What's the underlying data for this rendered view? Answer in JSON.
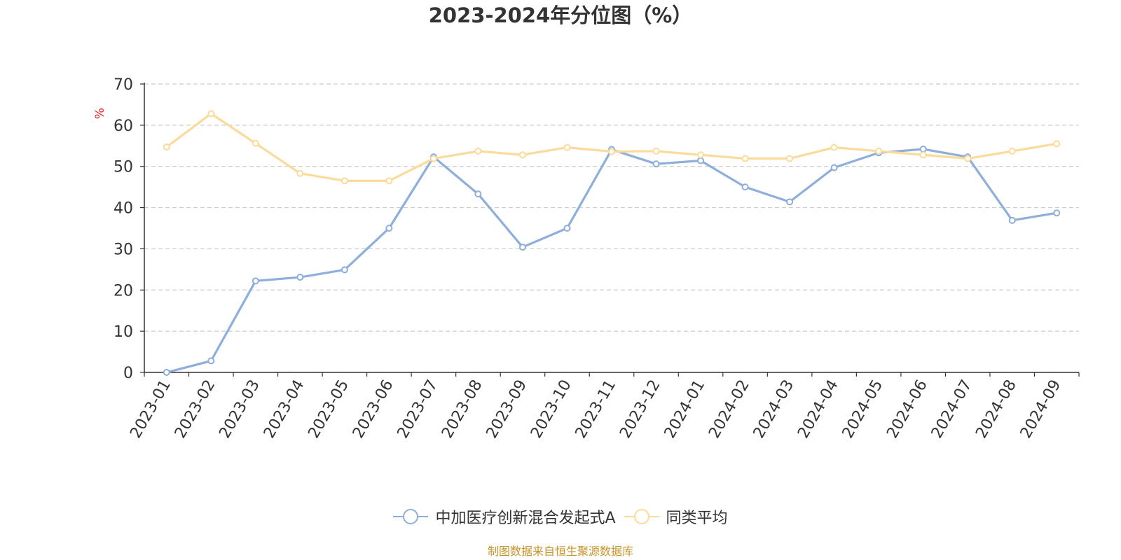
{
  "chart_data": {
    "type": "line",
    "title": "2023-2024年分位图（%）",
    "ylabel": "%",
    "xlabel": "",
    "ylim": [
      0,
      70
    ],
    "yticks": [
      0,
      10,
      20,
      30,
      40,
      50,
      60,
      70
    ],
    "grid": true,
    "legend_position": "bottom",
    "categories": [
      "2023-01",
      "2023-02",
      "2023-03",
      "2023-04",
      "2023-05",
      "2023-06",
      "2023-07",
      "2023-08",
      "2023-09",
      "2023-10",
      "2023-11",
      "2023-12",
      "2024-01",
      "2024-02",
      "2024-03",
      "2024-04",
      "2024-05",
      "2024-06",
      "2024-07",
      "2024-08",
      "2024-09"
    ],
    "series": [
      {
        "name": "中加医疗创新混合发起式A",
        "color": "#8eaedb",
        "values": [
          0,
          2.8,
          22.2,
          23.1,
          24.9,
          35.0,
          52.3,
          43.3,
          30.4,
          35.0,
          54.1,
          50.6,
          51.4,
          45.0,
          41.4,
          49.7,
          53.3,
          54.2,
          52.3,
          36.9,
          38.7
        ]
      },
      {
        "name": "同类平均",
        "color": "#fadb9b",
        "values": [
          54.7,
          62.8,
          55.6,
          48.3,
          46.5,
          46.5,
          51.9,
          53.7,
          52.8,
          54.6,
          53.6,
          53.7,
          52.8,
          51.9,
          51.9,
          54.6,
          53.7,
          52.8,
          51.9,
          53.7,
          55.5
        ]
      }
    ]
  },
  "footer": {
    "source": "制图数据来自恒生聚源数据库"
  }
}
